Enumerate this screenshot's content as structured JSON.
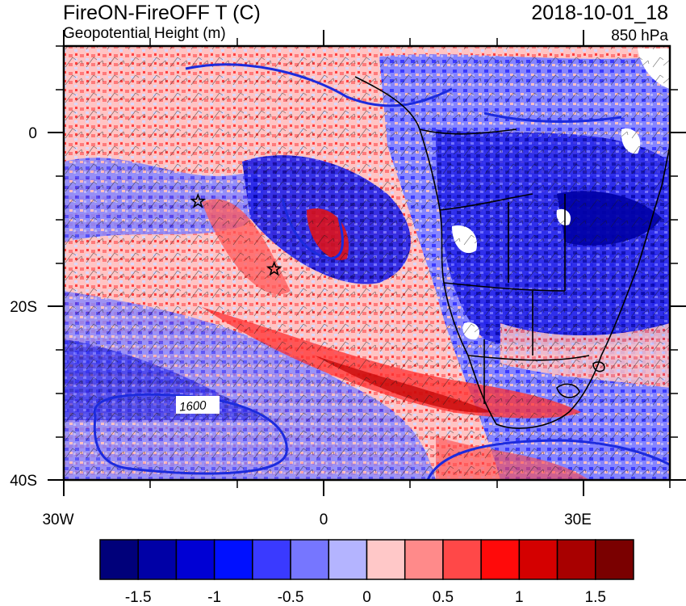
{
  "title": {
    "main": "FireON-FireOFF T (C)",
    "sub": "Geopotential Height (m)",
    "datetime": "2018-10-01_18",
    "level": "850 hPa"
  },
  "map": {
    "lon_range": [
      -30,
      40
    ],
    "lat_range": [
      -40,
      10
    ],
    "x_tick_labels": [
      "30W",
      "0",
      "30E"
    ],
    "y_tick_labels": [
      "0",
      "20S",
      "40S"
    ],
    "contour_label": "1600",
    "markers": [
      {
        "name": "star-marker-1",
        "lon": -14.5,
        "lat": -7.9
      },
      {
        "name": "star-marker-2",
        "lon": -5.7,
        "lat": -15.7
      }
    ]
  },
  "colorbar": {
    "colors": [
      "#00007a",
      "#0000a6",
      "#0000d4",
      "#0010ff",
      "#3a3aff",
      "#7676ff",
      "#b4b4ff",
      "#ffc8c8",
      "#ff8a8a",
      "#ff4848",
      "#ff0a0a",
      "#d40000",
      "#a80000",
      "#7a0000"
    ],
    "labels": [
      "-1.5",
      "-1",
      "-0.5",
      "0",
      "0.5",
      "1",
      "1.5"
    ]
  }
}
